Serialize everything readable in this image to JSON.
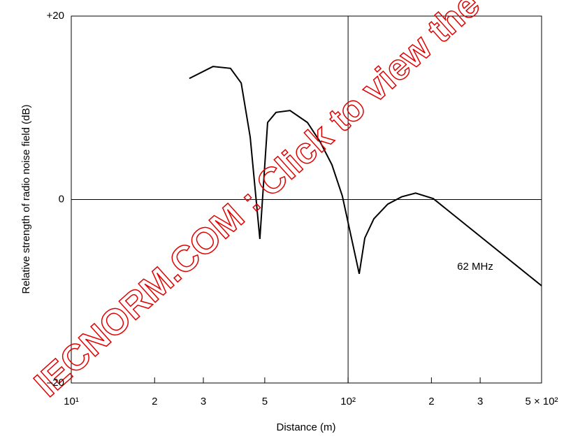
{
  "chart_data": {
    "type": "line",
    "xlabel": "Distance   (m)",
    "ylabel": "Relative strength of radio noise field   (dB)",
    "annotation": "62 MHz",
    "watermark": "IECNORM.COM : Click to view the full PDF",
    "log_x": true,
    "grid": true,
    "xlim": [
      10,
      500
    ],
    "ylim": [
      -20,
      20
    ],
    "xticks": [
      {
        "value": 10,
        "label": "10¹"
      },
      {
        "value": 20,
        "label": "2"
      },
      {
        "value": 30,
        "label": "3"
      },
      {
        "value": 50,
        "label": "5"
      },
      {
        "value": 100,
        "label": "10²"
      },
      {
        "value": 200,
        "label": "2"
      },
      {
        "value": 300,
        "label": "3"
      },
      {
        "value": 500,
        "label": "5 × 10²"
      }
    ],
    "yticks": [
      {
        "value": 20,
        "label": "+20"
      },
      0,
      {
        "value": -20,
        "label": "–20"
      }
    ],
    "series": [
      {
        "name": "62 MHz",
        "color": "#000000",
        "x": [
          26.7,
          32.5,
          37.6,
          41.1,
          44.3,
          48.0,
          51.2,
          54.9,
          61.7,
          71.3,
          79.2,
          87.4,
          95.3,
          109.7,
          114.9,
          123.9,
          139.1,
          156.2,
          175.4,
          203.1,
          500
        ],
        "values": [
          13.2,
          14.5,
          14.3,
          12.7,
          6.8,
          -4.3,
          8.4,
          9.5,
          9.7,
          8.4,
          6.3,
          3.8,
          0.4,
          -8.1,
          -4.2,
          -2.1,
          -0.5,
          0.3,
          0.7,
          0.1,
          -9.4
        ]
      }
    ]
  }
}
